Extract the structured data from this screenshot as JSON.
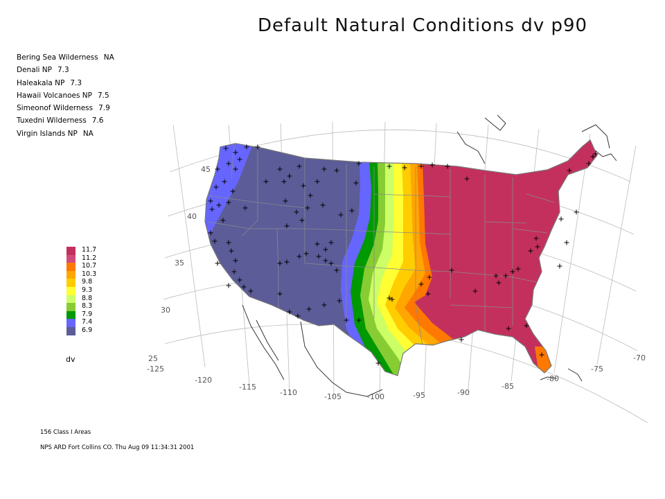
{
  "title": "Default Natural Conditions dv p90",
  "sites": [
    {
      "name": "Bering Sea Wilderness",
      "value": "NA"
    },
    {
      "name": "Denali NP",
      "value": "7.3"
    },
    {
      "name": "Haleakala NP",
      "value": "7.3"
    },
    {
      "name": "Hawaii Volcanoes NP",
      "value": "7.5"
    },
    {
      "name": "Simeonof Wilderness",
      "value": "7.9"
    },
    {
      "name": "Tuxedni Wilderness",
      "value": "7.6"
    },
    {
      "name": "Virgin Islands NP",
      "value": "NA"
    }
  ],
  "legend": {
    "unit": "dv",
    "items": [
      {
        "label": "11.7",
        "color": "#c4305e"
      },
      {
        "label": "11.2",
        "color": "#d24a7c"
      },
      {
        "label": "10.7",
        "color": "#ff7800"
      },
      {
        "label": "10.3",
        "color": "#ffa600"
      },
      {
        "label": "9.8",
        "color": "#ffcd00"
      },
      {
        "label": "9.3",
        "color": "#ffff33"
      },
      {
        "label": "8.8",
        "color": "#ccff66"
      },
      {
        "label": "8.3",
        "color": "#88cc33"
      },
      {
        "label": "7.9",
        "color": "#009900"
      },
      {
        "label": "7.4",
        "color": "#6666ff"
      },
      {
        "label": "6.9",
        "color": "#5c5c99"
      }
    ]
  },
  "latitude_labels": [
    "45",
    "40",
    "35",
    "30",
    "25"
  ],
  "longitude_labels": [
    "-125",
    "-120",
    "-115",
    "-110",
    "-105",
    "-100",
    "-95",
    "-90",
    "-85",
    "-80",
    "-75",
    "-70"
  ],
  "footer": {
    "count": "156 Class I Areas",
    "credit": "NPS ARD Fort Collins CO. Thu Aug 09 11:34:31 2001"
  }
}
